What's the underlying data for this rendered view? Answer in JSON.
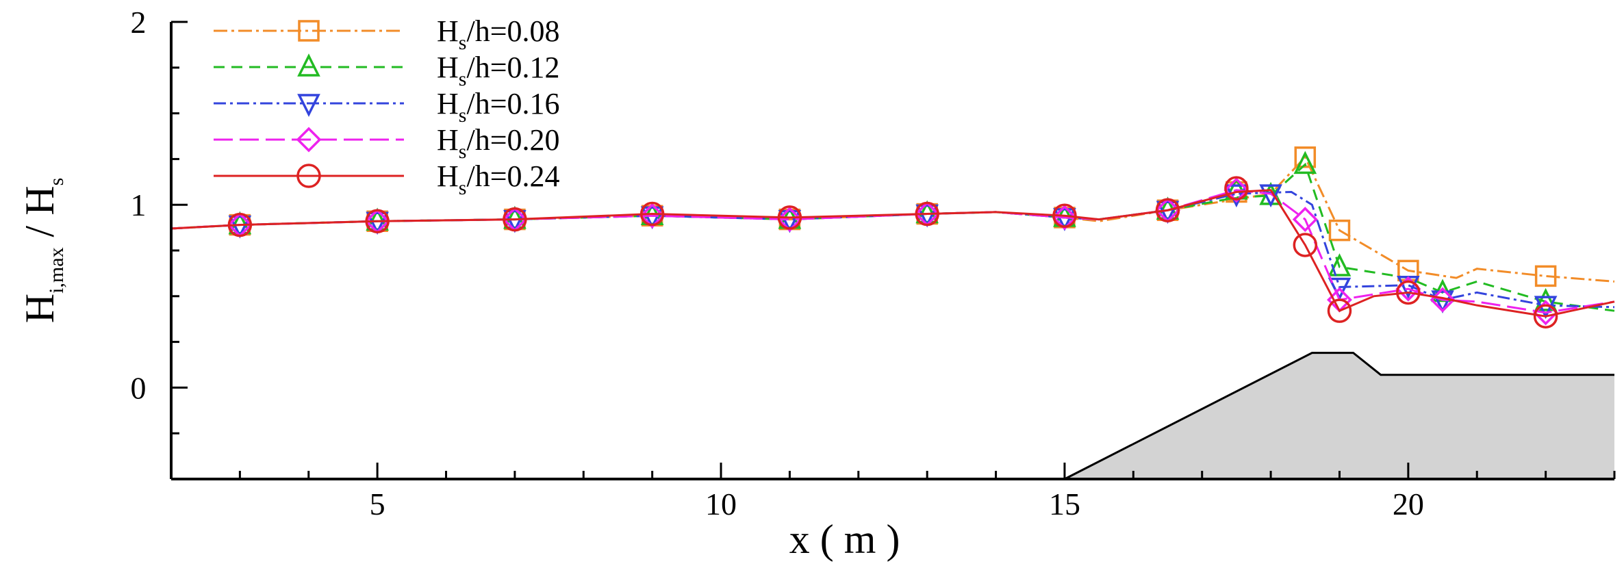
{
  "chart_data": {
    "type": "line",
    "xlim": [
      2,
      23
    ],
    "ylim": [
      -0.5,
      2
    ],
    "x_ticks": [
      5,
      10,
      15,
      20
    ],
    "y_ticks": [
      0,
      1,
      2
    ],
    "y_tick_labels": [
      "0",
      "1",
      "2"
    ],
    "x_tick_labels": [
      "5",
      "10",
      "15",
      "20"
    ],
    "xlabel": "x ( m )",
    "ylabel": {
      "main1": "H",
      "sub1": "i,max",
      "sep": " / ",
      "main2": "H",
      "sub2": "s"
    },
    "grid": false,
    "legend_placement": "top-left",
    "bathymetry": {
      "x": [
        15,
        18.6,
        19.2,
        19.6,
        23
      ],
      "y": [
        -0.5,
        0.19,
        0.19,
        0.07,
        0.07
      ],
      "fill": "#d3d3d3"
    },
    "series": [
      {
        "name": "H_s/h=0.08",
        "legend": {
          "main": "H",
          "sub": "s",
          "rest": "/h=0.08"
        },
        "color": "#f28c28",
        "dash": "20,6,4,6",
        "marker": "square",
        "line_x": [
          2,
          3,
          5,
          7,
          9,
          11,
          13,
          14,
          15,
          15.5,
          16.5,
          17.5,
          18,
          18.5,
          19,
          20,
          20.7,
          21,
          22,
          23
        ],
        "line_y": [
          0.87,
          0.89,
          0.91,
          0.92,
          0.94,
          0.92,
          0.95,
          0.96,
          0.93,
          0.91,
          0.97,
          1.03,
          1.06,
          1.26,
          0.86,
          0.64,
          0.6,
          0.65,
          0.61,
          0.58
        ],
        "marker_x": [
          3,
          5,
          7,
          9,
          11,
          13,
          15,
          16.5,
          17.5,
          18.5,
          19,
          20,
          22
        ],
        "marker_y": [
          0.89,
          0.91,
          0.92,
          0.94,
          0.92,
          0.95,
          0.93,
          0.97,
          1.07,
          1.26,
          0.86,
          0.64,
          0.61
        ]
      },
      {
        "name": "H_s/h=0.12",
        "legend": {
          "main": "H",
          "sub": "s",
          "rest": "/h=0.12"
        },
        "color": "#22bb22",
        "dash": "16,10",
        "marker": "triangle-up",
        "line_x": [
          2,
          3,
          5,
          7,
          9,
          11,
          13,
          14,
          15,
          15.5,
          16.5,
          17.5,
          18,
          18.5,
          19,
          20,
          20.5,
          21,
          22,
          23
        ],
        "line_y": [
          0.87,
          0.89,
          0.91,
          0.92,
          0.94,
          0.92,
          0.95,
          0.96,
          0.93,
          0.92,
          0.97,
          1.04,
          1.05,
          1.22,
          0.66,
          0.6,
          0.52,
          0.58,
          0.47,
          0.42
        ],
        "marker_x": [
          3,
          5,
          7,
          9,
          11,
          13,
          15,
          16.5,
          17.5,
          18,
          18.5,
          19,
          20.5,
          22
        ],
        "marker_y": [
          0.89,
          0.91,
          0.92,
          0.94,
          0.92,
          0.95,
          0.93,
          0.97,
          1.08,
          1.05,
          1.22,
          0.66,
          0.52,
          0.47
        ]
      },
      {
        "name": "H_s/h=0.16",
        "legend": {
          "main": "H",
          "sub": "s",
          "rest": "/h=0.16"
        },
        "color": "#3344dd",
        "dash": "18,6,4,6",
        "marker": "triangle-down",
        "line_x": [
          2,
          3,
          5,
          7,
          9,
          11,
          13,
          14,
          15,
          15.5,
          16.5,
          17.5,
          18.3,
          18.6,
          19,
          20,
          20.5,
          21,
          22,
          23
        ],
        "line_y": [
          0.87,
          0.89,
          0.91,
          0.92,
          0.94,
          0.92,
          0.95,
          0.96,
          0.93,
          0.92,
          0.97,
          1.06,
          1.07,
          1.0,
          0.55,
          0.56,
          0.48,
          0.52,
          0.45,
          0.44
        ],
        "marker_x": [
          3,
          5,
          7,
          9,
          11,
          13,
          15,
          16.5,
          17.5,
          18,
          19,
          20,
          20.5,
          22
        ],
        "marker_y": [
          0.89,
          0.91,
          0.92,
          0.94,
          0.92,
          0.95,
          0.93,
          0.97,
          1.06,
          1.06,
          0.55,
          0.56,
          0.48,
          0.45
        ]
      },
      {
        "name": "H_s/h=0.20",
        "legend": {
          "main": "H",
          "sub": "s",
          "rest": "/h=0.20"
        },
        "color": "#ee22ee",
        "dash": "28,10",
        "marker": "diamond",
        "line_x": [
          2,
          3,
          5,
          7,
          9,
          11,
          13,
          14,
          15,
          15.5,
          16.5,
          17.5,
          18,
          18.5,
          19,
          20,
          20.5,
          21,
          22,
          23
        ],
        "line_y": [
          0.87,
          0.89,
          0.91,
          0.92,
          0.94,
          0.92,
          0.95,
          0.96,
          0.93,
          0.92,
          0.97,
          1.08,
          1.06,
          0.92,
          0.48,
          0.54,
          0.48,
          0.47,
          0.41,
          0.47
        ],
        "marker_x": [
          3,
          5,
          7,
          9,
          11,
          13,
          15,
          16.5,
          17.5,
          18.5,
          19,
          20,
          20.5,
          22
        ],
        "marker_y": [
          0.89,
          0.91,
          0.92,
          0.94,
          0.92,
          0.95,
          0.93,
          0.97,
          1.08,
          0.92,
          0.48,
          0.54,
          0.48,
          0.41
        ]
      },
      {
        "name": "H_s/h=0.24",
        "legend": {
          "main": "H",
          "sub": "s",
          "rest": "/h=0.24"
        },
        "color": "#dd2222",
        "dash": "",
        "marker": "circle",
        "line_x": [
          2,
          3,
          5,
          7,
          9,
          11,
          13,
          14,
          15,
          15.5,
          16.5,
          17.5,
          18,
          18.5,
          19,
          19.5,
          20,
          20.5,
          21,
          22,
          23
        ],
        "line_y": [
          0.87,
          0.89,
          0.91,
          0.92,
          0.95,
          0.93,
          0.95,
          0.96,
          0.94,
          0.92,
          0.97,
          1.07,
          1.08,
          0.78,
          0.42,
          0.5,
          0.52,
          0.49,
          0.45,
          0.39,
          0.47
        ],
        "marker_x": [
          3,
          5,
          7,
          9,
          11,
          13,
          15,
          16.5,
          17.5,
          18.5,
          19,
          20,
          22
        ],
        "marker_y": [
          0.89,
          0.91,
          0.92,
          0.95,
          0.93,
          0.95,
          0.94,
          0.97,
          1.09,
          0.78,
          0.42,
          0.52,
          0.39
        ]
      }
    ]
  }
}
